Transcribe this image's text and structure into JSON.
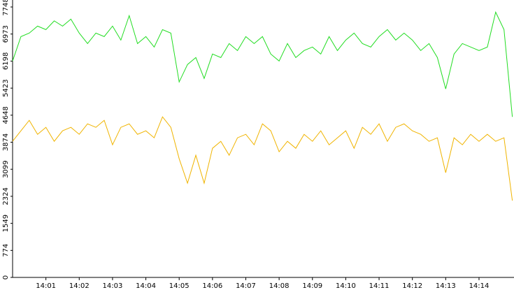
{
  "chart_data": {
    "type": "line",
    "x": [
      840,
      840.25,
      840.5,
      840.75,
      841,
      841.25,
      841.5,
      841.75,
      842,
      842.25,
      842.5,
      842.75,
      843,
      843.25,
      843.5,
      843.75,
      844,
      844.25,
      844.5,
      844.75,
      845,
      845.25,
      845.5,
      845.75,
      846,
      846.25,
      846.5,
      846.75,
      847,
      847.25,
      847.5,
      847.75,
      848,
      848.25,
      848.5,
      848.75,
      849,
      849.25,
      849.5,
      849.75,
      850,
      850.25,
      850.5,
      850.75,
      851,
      851.25,
      851.5,
      851.75,
      852,
      852.25,
      852.5,
      852.75,
      853,
      853.25,
      853.5,
      853.75,
      854,
      854.25,
      854.5,
      854.75,
      855
    ],
    "series": [
      {
        "color": "#22dd22",
        "values": [
          6200,
          6900,
          7000,
          7200,
          7100,
          7350,
          7200,
          7400,
          7000,
          6700,
          7000,
          6900,
          7200,
          6800,
          7500,
          6700,
          6900,
          6600,
          7100,
          7000,
          5600,
          6100,
          6300,
          5700,
          6400,
          6300,
          6700,
          6500,
          6900,
          6700,
          6900,
          6400,
          6200,
          6700,
          6300,
          6500,
          6600,
          6400,
          6900,
          6500,
          6800,
          7000,
          6700,
          6600,
          6900,
          7100,
          6800,
          7000,
          6800,
          6500,
          6700,
          6300,
          5400,
          6400,
          6700,
          6600,
          6500,
          6600,
          7600,
          7100,
          4600
        ]
      },
      {
        "color": "#f0b400",
        "values": [
          3900,
          4200,
          4500,
          4100,
          4300,
          3900,
          4200,
          4300,
          4100,
          4400,
          4300,
          4500,
          3800,
          4300,
          4400,
          4100,
          4200,
          4000,
          4600,
          4300,
          3400,
          2700,
          3500,
          2700,
          3700,
          3900,
          3500,
          4000,
          4100,
          3800,
          4400,
          4200,
          3600,
          3900,
          3700,
          4100,
          3900,
          4200,
          3800,
          4000,
          4200,
          3700,
          4300,
          4100,
          4400,
          3900,
          4300,
          4400,
          4200,
          4100,
          3900,
          4000,
          3000,
          4000,
          3800,
          4100,
          3900,
          4100,
          3900,
          4000,
          2200
        ]
      }
    ],
    "xlim": [
      840,
      855.05
    ],
    "xticks": [
      {
        "value": 841,
        "label": "14:01"
      },
      {
        "value": 842,
        "label": "14:02"
      },
      {
        "value": 843,
        "label": "14:03"
      },
      {
        "value": 844,
        "label": "14:04"
      },
      {
        "value": 845,
        "label": "14:05"
      },
      {
        "value": 846,
        "label": "14:06"
      },
      {
        "value": 847,
        "label": "14:07"
      },
      {
        "value": 848,
        "label": "14:08"
      },
      {
        "value": 849,
        "label": "14:09"
      },
      {
        "value": 850,
        "label": "14:10"
      },
      {
        "value": 851,
        "label": "14:11"
      },
      {
        "value": 852,
        "label": "14:12"
      },
      {
        "value": 853,
        "label": "14:13"
      },
      {
        "value": 854,
        "label": "14:14"
      }
    ],
    "ylim": [
      0,
      7748
    ],
    "yticks": [
      0,
      774,
      1549,
      2324,
      3099,
      3874,
      4648,
      5423,
      6198,
      6973,
      7748
    ]
  }
}
